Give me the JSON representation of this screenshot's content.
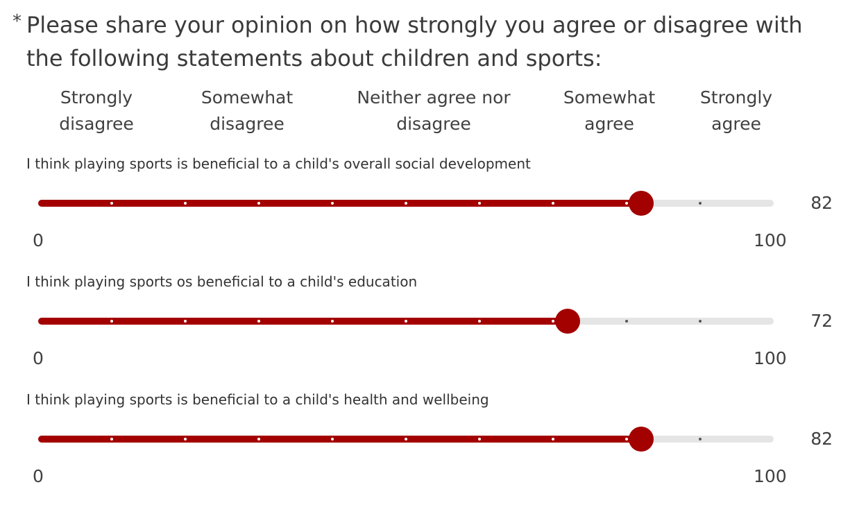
{
  "question": {
    "required_marker": "*",
    "text": "Please share your opinion on how strongly you agree or disagree with the following statements about children and sports:"
  },
  "scale_labels": [
    {
      "line1": "Strongly",
      "line2": "disagree"
    },
    {
      "line1": "Somewhat",
      "line2": "disagree"
    },
    {
      "line1": "Neither agree nor",
      "line2": "disagree"
    },
    {
      "line1": "Somewhat",
      "line2": "agree"
    },
    {
      "line1": "Strongly",
      "line2": "agree"
    }
  ],
  "slider_min": 0,
  "slider_max": 100,
  "tick_step": 10,
  "accent_color": "#a30000",
  "statements": [
    {
      "text": "I think playing sports is beneficial to a child's overall social development",
      "value": 82,
      "min_label": "0",
      "max_label": "100"
    },
    {
      "text": "I think playing sports os beneficial to a child's education",
      "value": 72,
      "min_label": "0",
      "max_label": "100"
    },
    {
      "text": "I think playing sports is beneficial to a child's health and wellbeing",
      "value": 82,
      "min_label": "0",
      "max_label": "100"
    }
  ]
}
